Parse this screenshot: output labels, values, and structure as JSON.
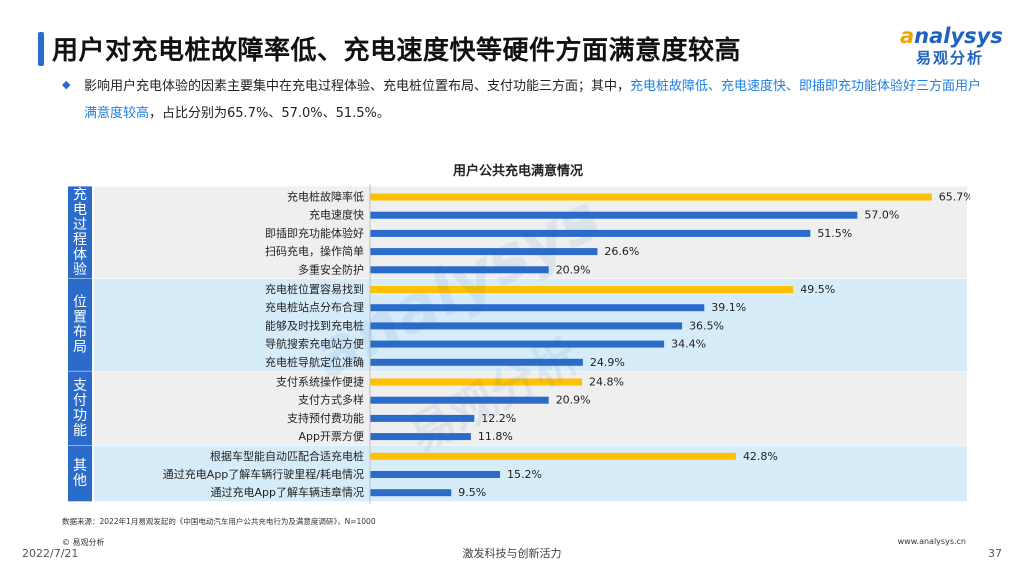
{
  "header": {
    "title": "用户对充电桩故障率低、充电速度快等硬件方面满意度较高",
    "logo_en_accent": "a",
    "logo_en_rest": "nalysys",
    "logo_cn": "易观分析"
  },
  "summary": {
    "part1": "影响用户充电体验的因素主要集中在充电过程体验、充电桩位置布局、支付功能三方面；其中，",
    "highlight": "充电桩故障低、充电速度快、即插即充功能体验好三方面用户满意度较高",
    "part2": "，占比分别为65.7%、57.0%、51.5%。"
  },
  "watermark": {
    "en": "analysys",
    "cn": "易观分析"
  },
  "chart_data": {
    "type": "bar",
    "orientation": "horizontal",
    "title": "用户公共充电满意情况",
    "xlim": [
      0,
      80
    ],
    "value_suffix": "%",
    "colors": {
      "highlight": "#ffc000",
      "normal": "#2b6ccb",
      "band_gray": "#efefef",
      "band_blue": "#d7ecf9",
      "group_label_bg": "#2b6ccb"
    },
    "groups": [
      {
        "name": "充电过程体验",
        "label_chars": [
          "充",
          "电",
          "过",
          "程",
          "体",
          "验"
        ],
        "band": "gray",
        "items": [
          {
            "label": "充电桩故障率低",
            "value": 65.7,
            "value_label": "65.7%",
            "highlight": true
          },
          {
            "label": "充电速度快",
            "value": 57.0,
            "value_label": "57.0%",
            "highlight": false
          },
          {
            "label": "即插即充功能体验好",
            "value": 51.5,
            "value_label": "51.5%",
            "highlight": false
          },
          {
            "label": "扫码充电，操作简单",
            "value": 26.6,
            "value_label": "26.6%",
            "highlight": false
          },
          {
            "label": "多重安全防护",
            "value": 20.9,
            "value_label": "20.9%",
            "highlight": false
          }
        ]
      },
      {
        "name": "位置布局",
        "label_chars": [
          "位",
          "置",
          "布",
          "局"
        ],
        "band": "blue",
        "items": [
          {
            "label": "充电桩位置容易找到",
            "value": 49.5,
            "value_label": "49.5%",
            "highlight": true
          },
          {
            "label": "充电桩站点分布合理",
            "value": 39.1,
            "value_label": "39.1%",
            "highlight": false
          },
          {
            "label": "能够及时找到充电桩",
            "value": 36.5,
            "value_label": "36.5%",
            "highlight": false
          },
          {
            "label": "导航搜索充电站方便",
            "value": 34.4,
            "value_label": "34.4%",
            "highlight": false
          },
          {
            "label": "充电桩导航定位准确",
            "value": 24.9,
            "value_label": "24.9%",
            "highlight": false
          }
        ]
      },
      {
        "name": "支付功能",
        "label_chars": [
          "支",
          "付",
          "功",
          "能"
        ],
        "band": "gray",
        "items": [
          {
            "label": "支付系统操作便捷",
            "value": 24.8,
            "value_label": "24.8%",
            "highlight": true
          },
          {
            "label": "支付方式多样",
            "value": 20.9,
            "value_label": "20.9%",
            "highlight": false
          },
          {
            "label": "支持预付费功能",
            "value": 12.2,
            "value_label": "12.2%",
            "highlight": false
          },
          {
            "label": "App开票方便",
            "value": 11.8,
            "value_label": "11.8%",
            "highlight": false
          }
        ]
      },
      {
        "name": "其他",
        "label_chars": [
          "其",
          "他"
        ],
        "band": "blue",
        "items": [
          {
            "label": "根据车型能自动匹配合适充电桩",
            "value": 42.8,
            "value_label": "42.8%",
            "highlight": true
          },
          {
            "label": "通过充电App了解车辆行驶里程/耗电情况",
            "value": 15.2,
            "value_label": "15.2%",
            "highlight": false
          },
          {
            "label": "通过充电App了解车辆违章情况",
            "value": 9.5,
            "value_label": "9.5%",
            "highlight": false
          }
        ]
      }
    ]
  },
  "footer": {
    "source": "数据来源：2022年1月易观发起的《中国电动汽车用户公共充电行为及满意度调研》，N=1000",
    "copyright": "© 易观分析",
    "date": "2022/7/21",
    "slogan": "激发科技与创新活力",
    "website": "www.analysys.cn",
    "page": "37"
  }
}
